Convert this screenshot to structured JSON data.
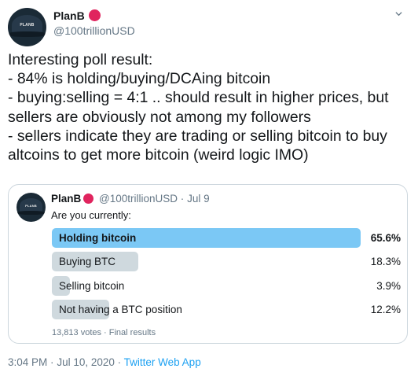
{
  "author": {
    "name": "PlanB",
    "handle": "@100trillionUSD",
    "avatar_logo": "PLANB"
  },
  "tweet": {
    "text": "Interesting poll result:\n- 84% is holding/buying/DCAing bitcoin\n- buying:selling = 4:1 .. should result in higher prices, but sellers are obviously not among my followers\n- sellers indicate they are trading or selling bitcoin to buy altcoins to get more bitcoin (weird logic IMO)"
  },
  "quoted_poll": {
    "author_name": "PlanB",
    "author_handle": "@100trillionUSD",
    "separator": "·",
    "date": "Jul 9",
    "question": "Are you currently:",
    "options": [
      {
        "label": "Holding bitcoin",
        "percent_text": "65.6%",
        "fraction": 0.656,
        "winner": true
      },
      {
        "label": "Buying BTC",
        "percent_text": "18.3%",
        "fraction": 0.183,
        "winner": false
      },
      {
        "label": "Selling bitcoin",
        "percent_text": "3.9%",
        "fraction": 0.039,
        "winner": false
      },
      {
        "label": "Not having a BTC position",
        "percent_text": "12.2%",
        "fraction": 0.122,
        "winner": false
      }
    ],
    "meta": "13,813 votes · Final results"
  },
  "footer": {
    "time": "3:04 PM",
    "date": "Jul 10, 2020",
    "separator": "·",
    "source": "Twitter Web App"
  },
  "colors": {
    "winner_bar": "#7bc8f5",
    "other_bar": "#cfd9de",
    "link": "#1da1f2",
    "badge": "#e0245e"
  }
}
